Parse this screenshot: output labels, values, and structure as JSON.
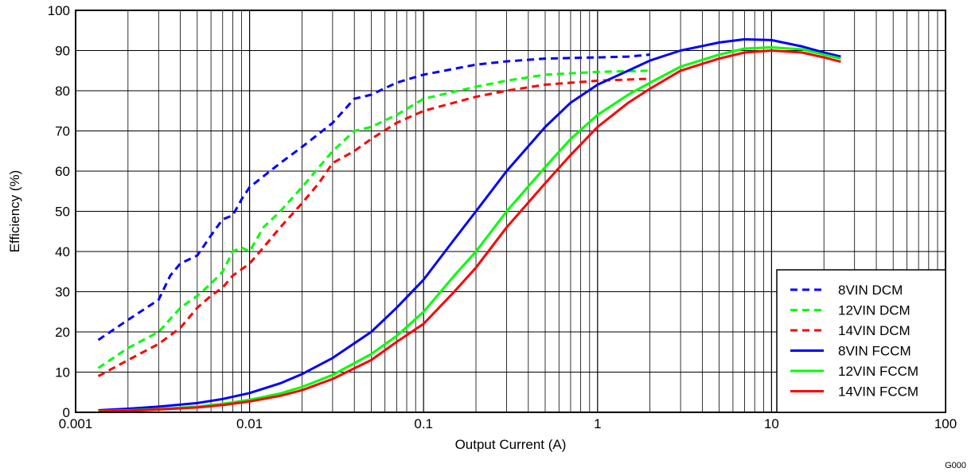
{
  "chart_data": {
    "type": "line",
    "xlabel": "Output Current (A)",
    "ylabel": "Efficiency (%)",
    "xscale": "log",
    "xlim": [
      0.001,
      100
    ],
    "ylim": [
      0,
      100
    ],
    "grid": true,
    "legend_position": "bottom-right",
    "x_tick_labels": [
      "0.001",
      "0.01",
      "0.1",
      "1",
      "10",
      "100"
    ],
    "y_tick_labels": [
      "0",
      "10",
      "20",
      "30",
      "40",
      "50",
      "60",
      "70",
      "80",
      "90",
      "100"
    ],
    "corner_note": "G000",
    "series": [
      {
        "name": "8VIN DCM",
        "color": "#0000ff",
        "dash": "dashed",
        "points": [
          [
            0.00135,
            18
          ],
          [
            0.002,
            23
          ],
          [
            0.003,
            28
          ],
          [
            0.0035,
            34
          ],
          [
            0.004,
            37
          ],
          [
            0.005,
            39
          ],
          [
            0.006,
            44
          ],
          [
            0.007,
            48
          ],
          [
            0.008,
            49
          ],
          [
            0.009,
            53
          ],
          [
            0.01,
            56
          ],
          [
            0.015,
            62
          ],
          [
            0.02,
            66
          ],
          [
            0.03,
            72
          ],
          [
            0.04,
            78
          ],
          [
            0.05,
            79
          ],
          [
            0.07,
            82
          ],
          [
            0.1,
            84
          ],
          [
            0.2,
            86.5
          ],
          [
            0.3,
            87.3
          ],
          [
            0.5,
            88
          ],
          [
            1,
            88.3
          ],
          [
            1.5,
            88.5
          ],
          [
            2,
            89
          ]
        ]
      },
      {
        "name": "12VIN DCM",
        "color": "#00ff00",
        "dash": "dashed",
        "points": [
          [
            0.00135,
            11
          ],
          [
            0.002,
            16
          ],
          [
            0.003,
            20
          ],
          [
            0.004,
            26
          ],
          [
            0.005,
            29
          ],
          [
            0.006,
            32
          ],
          [
            0.007,
            35
          ],
          [
            0.008,
            40
          ],
          [
            0.009,
            41
          ],
          [
            0.01,
            40
          ],
          [
            0.012,
            46
          ],
          [
            0.015,
            50
          ],
          [
            0.02,
            56
          ],
          [
            0.03,
            65
          ],
          [
            0.04,
            70
          ],
          [
            0.05,
            71
          ],
          [
            0.07,
            74
          ],
          [
            0.1,
            78
          ],
          [
            0.2,
            81
          ],
          [
            0.3,
            82.5
          ],
          [
            0.5,
            84
          ],
          [
            1,
            84.7
          ],
          [
            2,
            85
          ]
        ]
      },
      {
        "name": "14VIN DCM",
        "color": "#ff0000",
        "dash": "dashed",
        "points": [
          [
            0.00135,
            9
          ],
          [
            0.002,
            13
          ],
          [
            0.003,
            17
          ],
          [
            0.004,
            21
          ],
          [
            0.005,
            26
          ],
          [
            0.006,
            29
          ],
          [
            0.007,
            31
          ],
          [
            0.008,
            34
          ],
          [
            0.01,
            37
          ],
          [
            0.012,
            41
          ],
          [
            0.015,
            46
          ],
          [
            0.02,
            52
          ],
          [
            0.025,
            57
          ],
          [
            0.03,
            62
          ],
          [
            0.04,
            65
          ],
          [
            0.05,
            68
          ],
          [
            0.07,
            72
          ],
          [
            0.1,
            75
          ],
          [
            0.2,
            78.5
          ],
          [
            0.3,
            80
          ],
          [
            0.5,
            81.5
          ],
          [
            1,
            82.5
          ],
          [
            2,
            83
          ]
        ]
      },
      {
        "name": "8VIN FCCM",
        "color": "#0000ff",
        "dash": "solid",
        "points": [
          [
            0.00135,
            0.5
          ],
          [
            0.002,
            0.9
          ],
          [
            0.003,
            1.4
          ],
          [
            0.005,
            2.3
          ],
          [
            0.007,
            3.3
          ],
          [
            0.01,
            4.8
          ],
          [
            0.015,
            7.2
          ],
          [
            0.02,
            9.5
          ],
          [
            0.03,
            13.5
          ],
          [
            0.05,
            20
          ],
          [
            0.07,
            26
          ],
          [
            0.1,
            33
          ],
          [
            0.15,
            43
          ],
          [
            0.2,
            50
          ],
          [
            0.3,
            60
          ],
          [
            0.5,
            71
          ],
          [
            0.7,
            77
          ],
          [
            1,
            81.5
          ],
          [
            1.5,
            85
          ],
          [
            2,
            87.5
          ],
          [
            3,
            90
          ],
          [
            5,
            92
          ],
          [
            7,
            92.8
          ],
          [
            10,
            92.6
          ],
          [
            15,
            91
          ],
          [
            20,
            89.5
          ],
          [
            25,
            88.5
          ]
        ]
      },
      {
        "name": "12VIN FCCM",
        "color": "#00ff00",
        "dash": "solid",
        "points": [
          [
            0.00135,
            0.3
          ],
          [
            0.002,
            0.5
          ],
          [
            0.003,
            0.8
          ],
          [
            0.005,
            1.4
          ],
          [
            0.007,
            2.1
          ],
          [
            0.01,
            3.1
          ],
          [
            0.015,
            4.7
          ],
          [
            0.02,
            6.3
          ],
          [
            0.03,
            9.3
          ],
          [
            0.05,
            14.5
          ],
          [
            0.07,
            19
          ],
          [
            0.1,
            25
          ],
          [
            0.15,
            34
          ],
          [
            0.2,
            40
          ],
          [
            0.3,
            50
          ],
          [
            0.5,
            61
          ],
          [
            0.7,
            68
          ],
          [
            1,
            74
          ],
          [
            1.5,
            79
          ],
          [
            2,
            82
          ],
          [
            3,
            86
          ],
          [
            5,
            89
          ],
          [
            7,
            90.5
          ],
          [
            10,
            90.8
          ],
          [
            15,
            90.3
          ],
          [
            20,
            89
          ],
          [
            25,
            88
          ]
        ]
      },
      {
        "name": "14VIN FCCM",
        "color": "#ff0000",
        "dash": "solid",
        "points": [
          [
            0.00135,
            0.2
          ],
          [
            0.002,
            0.4
          ],
          [
            0.003,
            0.7
          ],
          [
            0.005,
            1.2
          ],
          [
            0.007,
            1.8
          ],
          [
            0.01,
            2.7
          ],
          [
            0.015,
            4.1
          ],
          [
            0.02,
            5.5
          ],
          [
            0.03,
            8.3
          ],
          [
            0.05,
            13
          ],
          [
            0.07,
            17.5
          ],
          [
            0.1,
            22
          ],
          [
            0.15,
            30
          ],
          [
            0.2,
            36
          ],
          [
            0.3,
            46
          ],
          [
            0.5,
            57
          ],
          [
            0.7,
            64
          ],
          [
            1,
            71
          ],
          [
            1.5,
            77
          ],
          [
            2,
            80.5
          ],
          [
            3,
            85
          ],
          [
            5,
            88
          ],
          [
            7,
            89.5
          ],
          [
            10,
            90
          ],
          [
            15,
            89.5
          ],
          [
            20,
            88.3
          ],
          [
            25,
            87.2
          ]
        ]
      }
    ]
  }
}
